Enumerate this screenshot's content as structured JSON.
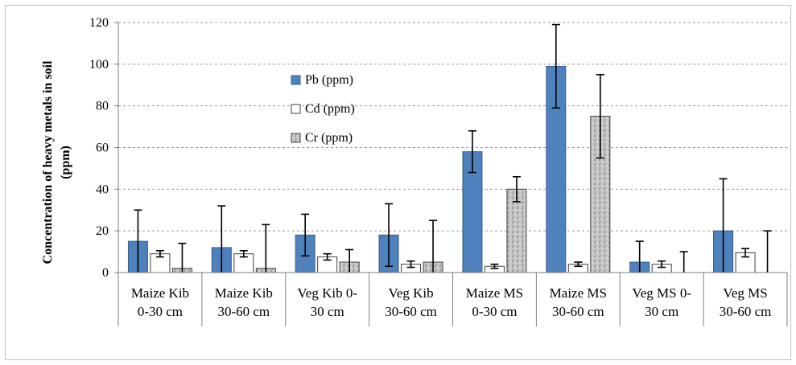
{
  "chart_data": {
    "type": "bar",
    "ylabel_line1": "Concentration of heavy metals in soil",
    "ylabel_line2": "(ppm)",
    "ylim": [
      0,
      120
    ],
    "yticks": [
      0,
      20,
      40,
      60,
      80,
      100,
      120
    ],
    "grid": "horizontal dashed",
    "legend_position": "inside-upper-left",
    "categories": [
      [
        "Maize Kib",
        "0-30 cm"
      ],
      [
        "Maize Kib",
        "30-60 cm"
      ],
      [
        "Veg Kib 0-",
        "30 cm"
      ],
      [
        "Veg Kib",
        "30-60 cm"
      ],
      [
        "Maize MS",
        "0-30 cm"
      ],
      [
        "Maize MS",
        "30-60 cm"
      ],
      [
        "Veg MS 0-",
        "30 cm"
      ],
      [
        "Veg MS",
        "30-60 cm"
      ]
    ],
    "series": [
      {
        "name": "Pb (ppm)",
        "color": "#4f81bd",
        "values": [
          15,
          12,
          18,
          18,
          58,
          99,
          5,
          20
        ],
        "error": [
          15,
          20,
          10,
          15,
          10,
          20,
          10,
          25
        ]
      },
      {
        "name": "Cd (ppm)",
        "color": "#ffffff",
        "values": [
          9,
          9,
          7.5,
          4,
          3,
          4,
          4,
          9.5
        ],
        "error": [
          1.5,
          1.5,
          1.5,
          1.5,
          1,
          1,
          1.5,
          2
        ]
      },
      {
        "name": "Cr (ppm)",
        "color": "#c9c9c9",
        "values": [
          2,
          2,
          5,
          5,
          40,
          75,
          0,
          0
        ],
        "error": [
          12,
          21,
          6,
          20,
          6,
          20,
          10,
          20
        ]
      }
    ]
  }
}
